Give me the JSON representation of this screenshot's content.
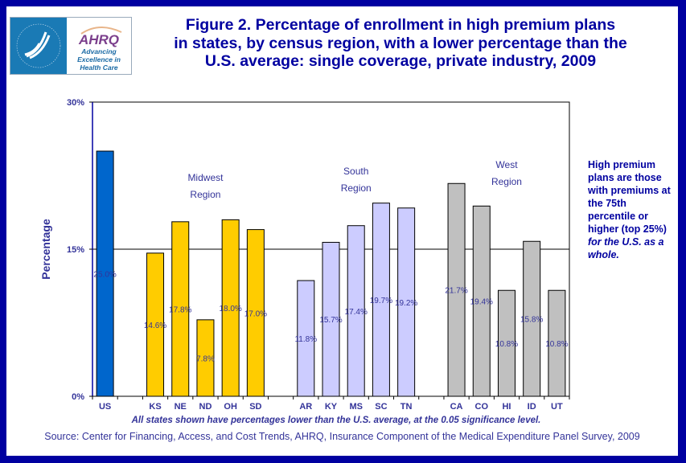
{
  "logo": {
    "hhs_text": "DEPARTMENT OF HEALTH & HUMAN SERVICES USA",
    "brand": "AHRQ",
    "tagline_lines": [
      "Advancing",
      "Excellence in",
      "Health Care"
    ]
  },
  "title_lines": [
    "Figure 2. Percentage of enrollment in high premium plans",
    "in states, by census region, with a lower percentage than the",
    "U.S. average: single coverage, private industry, 2009"
  ],
  "note": {
    "normal": "High premium plans are those with premiums at the 75th percentile or higher (top 25%) ",
    "italic": "for the U.S. as a whole."
  },
  "footnote": "All states shown have percentages lower than the U.S. average, at the 0.05 significance level.",
  "source": "Source: Center  for Financing, Access, and Cost Trends, AHRQ,  Insurance  Component of the Medical Expenditure Panel Survey, 2009",
  "chart_data": {
    "type": "bar",
    "ylabel": "Percentage",
    "ylim": [
      0,
      30
    ],
    "yticks": [
      "0%",
      "15%",
      "30%"
    ],
    "reference_line": 15,
    "categories": [
      "US",
      "",
      "KS",
      "NE",
      "ND",
      "OH",
      "SD",
      "",
      "AR",
      "KY",
      "MS",
      "SC",
      "TN",
      "",
      "CA",
      "CO",
      "HI",
      "ID",
      "UT"
    ],
    "values": [
      25.0,
      null,
      14.6,
      17.8,
      7.8,
      18.0,
      17.0,
      null,
      11.8,
      15.7,
      17.4,
      19.7,
      19.2,
      null,
      21.7,
      19.4,
      10.8,
      15.8,
      10.8
    ],
    "data_labels": [
      "25.0%",
      "",
      "14.6%",
      "17.8%",
      "7.8%",
      "18.0%",
      "17.0%",
      "",
      "11.8%",
      "15.7%",
      "17.4%",
      "19.7%",
      "19.2%",
      "",
      "21.7%",
      "19.4%",
      "10.8%",
      "15.8%",
      "10.8%"
    ],
    "groups": [
      "US",
      "",
      "Midwest",
      "Midwest",
      "Midwest",
      "Midwest",
      "Midwest",
      "",
      "South",
      "South",
      "South",
      "South",
      "South",
      "",
      "West",
      "West",
      "West",
      "West",
      "West"
    ],
    "group_colors": {
      "US": "#0066CC",
      "Midwest": "#FFCC00",
      "South": "#CCCCFF",
      "West": "#C0C0C0"
    },
    "annotations": [
      {
        "lines": [
          "Midwest",
          "Region"
        ],
        "group": "Midwest"
      },
      {
        "lines": [
          "South",
          "Region"
        ],
        "group": "South"
      },
      {
        "lines": [
          "West",
          "Region"
        ],
        "group": "West"
      }
    ],
    "grid": false
  }
}
